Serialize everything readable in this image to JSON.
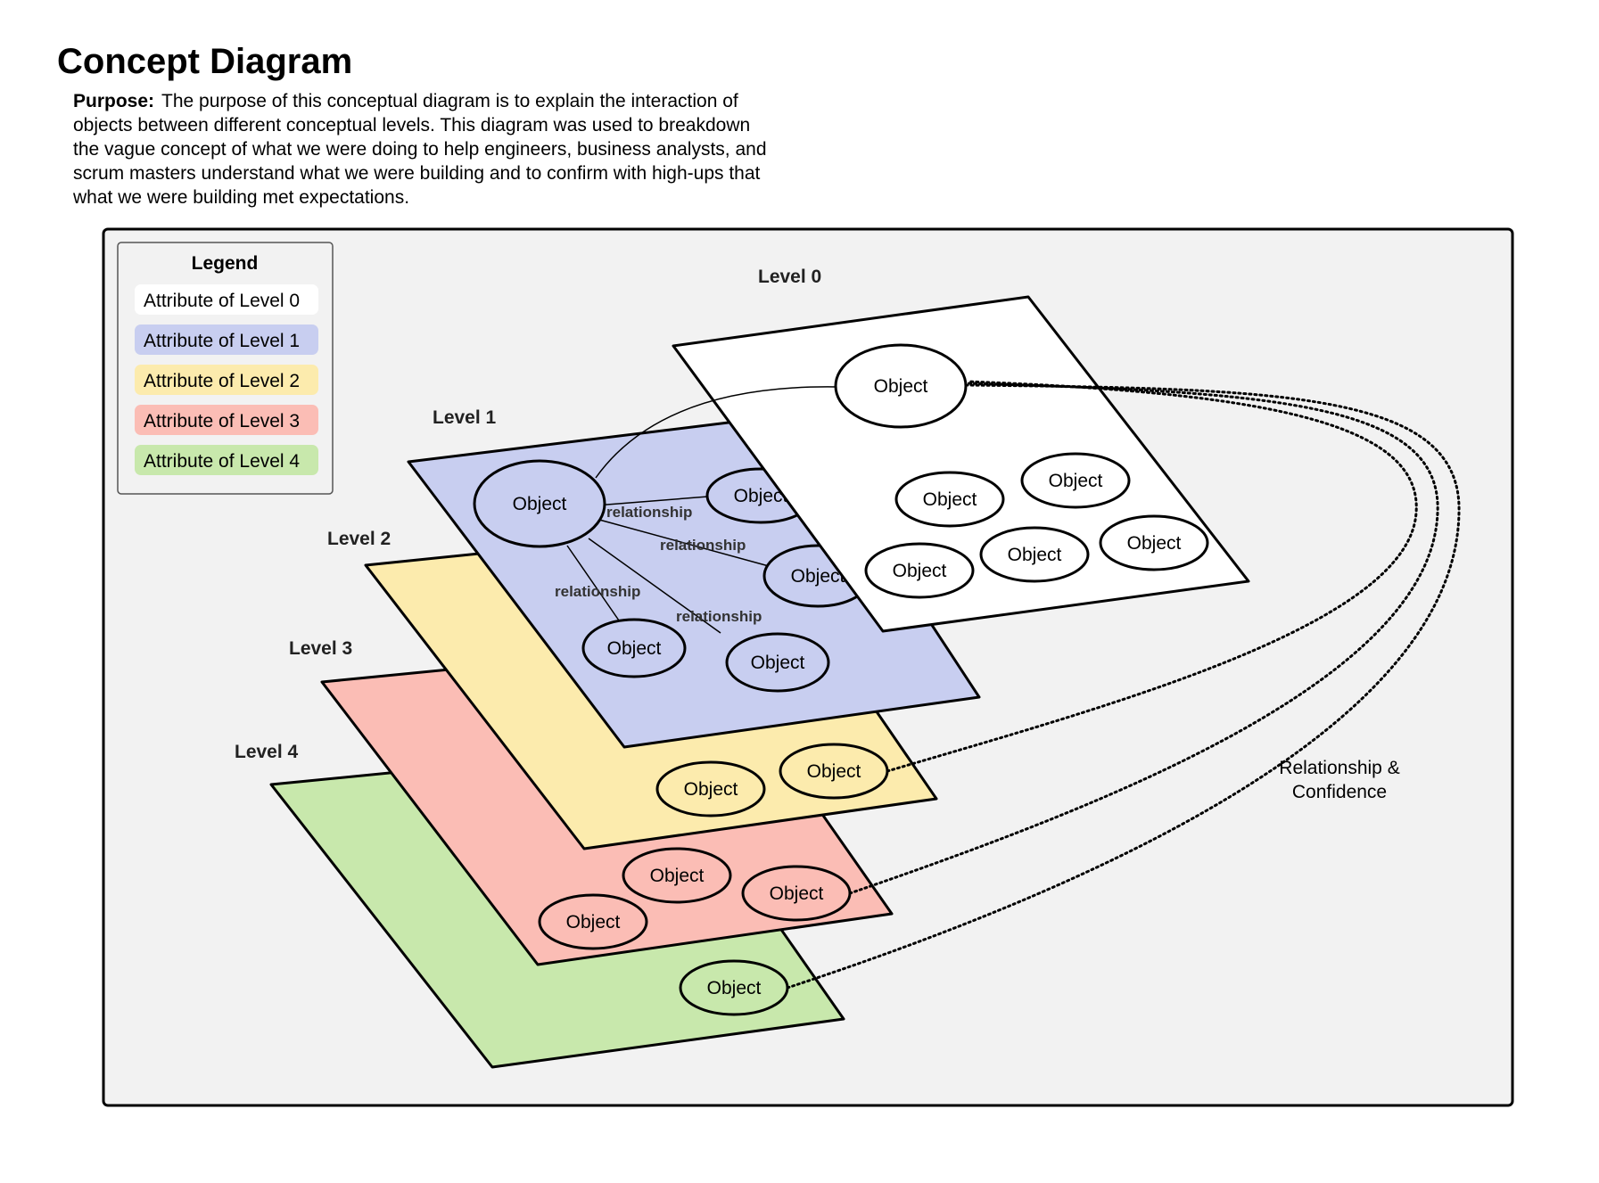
{
  "header": {
    "title": "Concept Diagram",
    "purpose_label": "Purpose:",
    "purpose_text": "The purpose of this conceptual diagram is to explain the interaction of objects between different conceptual levels. This diagram was used to breakdown the vague concept of what we were doing to help engineers, business analysts, and scrum masters understand what we were building and to confirm with high-ups that what we were building met expectations."
  },
  "legend": {
    "title": "Legend",
    "items": [
      {
        "label": "Attribute of Level 0",
        "color": "#ffffff"
      },
      {
        "label": "Attribute of Level 1",
        "color": "#c8cef0"
      },
      {
        "label": "Attribute of Level 2",
        "color": "#fcebad"
      },
      {
        "label": "Attribute of Level 3",
        "color": "#fbbdb5"
      },
      {
        "label": "Attribute of Level 4",
        "color": "#c8e8ac"
      }
    ]
  },
  "levels": {
    "level0": {
      "label": "Level 0",
      "color": "#ffffff"
    },
    "level1": {
      "label": "Level 1",
      "color": "#c8cef0"
    },
    "level2": {
      "label": "Level 2",
      "color": "#fcebad"
    },
    "level3": {
      "label": "Level 3",
      "color": "#fbbdb5"
    },
    "level4": {
      "label": "Level 4",
      "color": "#c8e8ac"
    }
  },
  "object_label": "Object",
  "relationship_label": "relationship",
  "side_note": {
    "line1": "Relationship &",
    "line2": "Confidence"
  },
  "colors": {
    "canvas_background": "#f2f2f2",
    "stroke": "#000000"
  }
}
